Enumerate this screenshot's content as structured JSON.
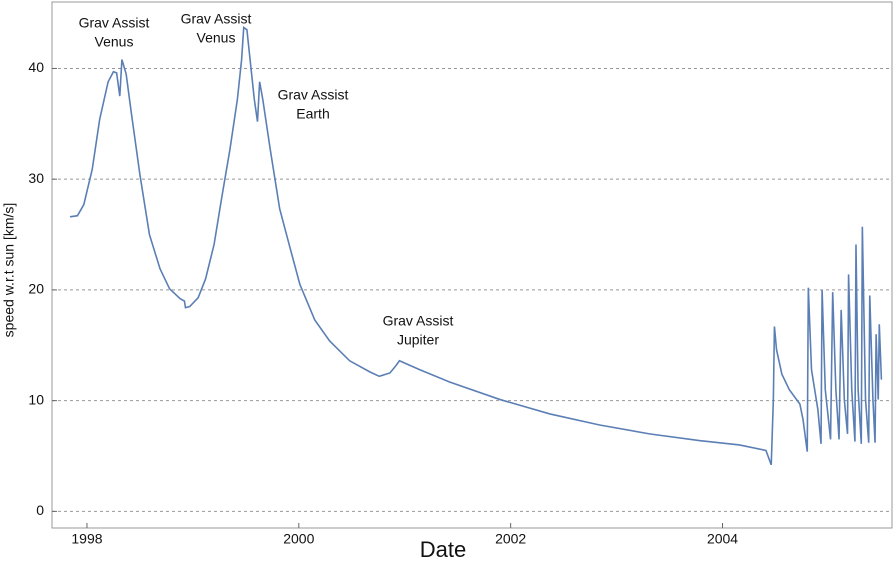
{
  "chart_data": {
    "type": "line",
    "x_label": "Date",
    "y_label": "speed w.r.t sun [km/s]",
    "xlim": [
      1997.67,
      2005.6
    ],
    "ylim": [
      -1.5,
      46
    ],
    "xticks": [
      1998,
      2000,
      2002,
      2004
    ],
    "yticks": [
      0,
      10,
      20,
      30,
      40
    ],
    "grid": true,
    "annotations": [
      [
        "Grav Assist",
        "Venus"
      ],
      [
        "Grav Assist",
        "Venus"
      ],
      [
        "Grav Assist",
        "Earth"
      ],
      [
        "Grav Assist",
        "Jupiter"
      ]
    ],
    "series": [
      {
        "color": "#5b7fb5",
        "x": [
          1997.84,
          1997.91,
          1997.97,
          1998.05,
          1998.12,
          1998.2,
          1998.25,
          1998.28,
          1998.31,
          1998.33,
          1998.37,
          1998.42,
          1998.5,
          1998.59,
          1998.69,
          1998.78,
          1998.88,
          1998.92,
          1998.93,
          1998.97,
          1999.05,
          1999.12,
          1999.2,
          1999.27,
          1999.35,
          1999.42,
          1999.46,
          1999.48,
          1999.51,
          1999.54,
          1999.58,
          1999.61,
          1999.63,
          1999.66,
          1999.73,
          1999.82,
          1999.92,
          2000.01,
          2000.15,
          2000.29,
          2000.48,
          2000.67,
          2000.76,
          2000.86,
          2000.92,
          2000.95,
          2001.14,
          2001.42,
          2001.9,
          2002.37,
          2002.84,
          2003.31,
          2003.78,
          2004.16,
          2004.41,
          2004.46,
          2004.48,
          2004.49,
          2004.51,
          2004.56,
          2004.63,
          2004.73,
          2004.76,
          2004.8,
          2004.81,
          2004.84,
          2004.9,
          2004.93,
          2004.94,
          2004.97,
          2005.02,
          2005.04,
          2005.07,
          2005.1,
          2005.12,
          2005.15,
          2005.18,
          2005.19,
          2005.22,
          2005.25,
          2005.26,
          2005.28,
          2005.31,
          2005.32,
          2005.35,
          2005.38,
          2005.39,
          2005.42,
          2005.44,
          2005.45,
          2005.47,
          2005.48,
          2005.5
        ],
        "values": [
          26.6,
          26.7,
          27.7,
          30.9,
          35.4,
          38.8,
          39.7,
          39.6,
          37.5,
          40.8,
          39.5,
          35.9,
          30.4,
          25.0,
          21.9,
          20.1,
          19.2,
          19.0,
          18.4,
          18.5,
          19.3,
          21.0,
          24.1,
          28.2,
          32.7,
          37.2,
          40.8,
          43.7,
          43.5,
          40.8,
          37.2,
          35.2,
          38.8,
          37.2,
          32.7,
          27.3,
          23.7,
          20.5,
          17.3,
          15.4,
          13.6,
          12.6,
          12.2,
          12.5,
          13.2,
          13.6,
          12.8,
          11.7,
          10.1,
          8.8,
          7.8,
          7.0,
          6.4,
          6.0,
          5.5,
          4.2,
          10.1,
          16.7,
          14.6,
          12.4,
          11.0,
          9.7,
          8.3,
          5.4,
          20.2,
          12.8,
          9.2,
          6.1,
          20.0,
          11.0,
          6.5,
          19.8,
          11.0,
          6.5,
          18.2,
          10.1,
          7.0,
          21.4,
          11.0,
          6.3,
          24.1,
          11.0,
          6.1,
          25.7,
          10.1,
          6.2,
          19.5,
          10.1,
          6.2,
          16.0,
          10.1,
          16.9,
          11.9
        ]
      }
    ]
  }
}
